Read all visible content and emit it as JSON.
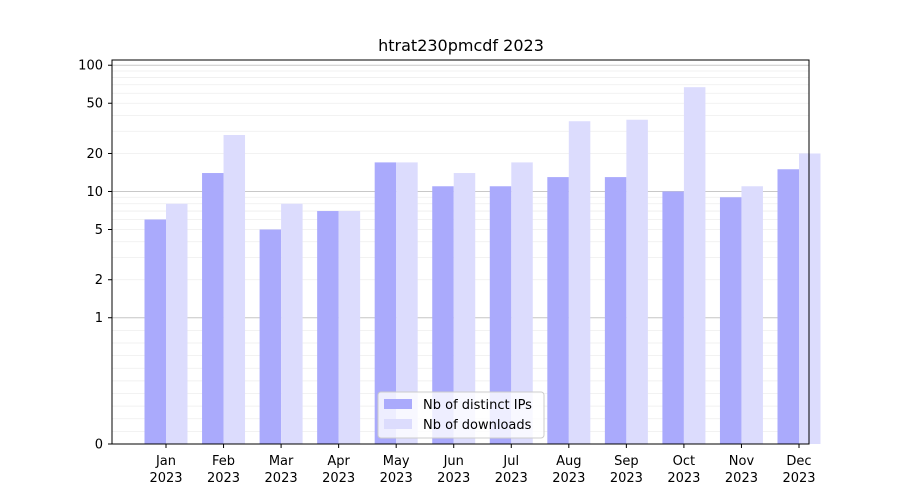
{
  "chart_data": {
    "type": "bar",
    "title": "htrat230pmcdf 2023",
    "xlabel": "",
    "ylabel": "",
    "yscale": "symlog",
    "ylim": [
      0,
      110
    ],
    "yticks": [
      {
        "value": 0,
        "label": "0"
      },
      {
        "value": 1,
        "label": "1"
      },
      {
        "value": 2,
        "label": "2"
      },
      {
        "value": 5,
        "label": "5"
      },
      {
        "value": 10,
        "label": "10"
      },
      {
        "value": 20,
        "label": "20"
      },
      {
        "value": 50,
        "label": "50"
      },
      {
        "value": 100,
        "label": "100"
      }
    ],
    "categories": [
      {
        "month": "Jan",
        "year": "2023"
      },
      {
        "month": "Feb",
        "year": "2023"
      },
      {
        "month": "Mar",
        "year": "2023"
      },
      {
        "month": "Apr",
        "year": "2023"
      },
      {
        "month": "May",
        "year": "2023"
      },
      {
        "month": "Jun",
        "year": "2023"
      },
      {
        "month": "Jul",
        "year": "2023"
      },
      {
        "month": "Aug",
        "year": "2023"
      },
      {
        "month": "Sep",
        "year": "2023"
      },
      {
        "month": "Oct",
        "year": "2023"
      },
      {
        "month": "Nov",
        "year": "2023"
      },
      {
        "month": "Dec",
        "year": "2023"
      }
    ],
    "series": [
      {
        "name": "Nb of distinct IPs",
        "color": "#aaaafc",
        "values": [
          6,
          14,
          5,
          7,
          17,
          11,
          11,
          13,
          13,
          10,
          9,
          15
        ]
      },
      {
        "name": "Nb of downloads",
        "color": "#dcdcfd",
        "values": [
          8,
          28,
          8,
          7,
          17,
          14,
          17,
          36,
          37,
          67,
          11,
          20
        ]
      }
    ],
    "legend_position": "bottom-center",
    "grid": true
  }
}
